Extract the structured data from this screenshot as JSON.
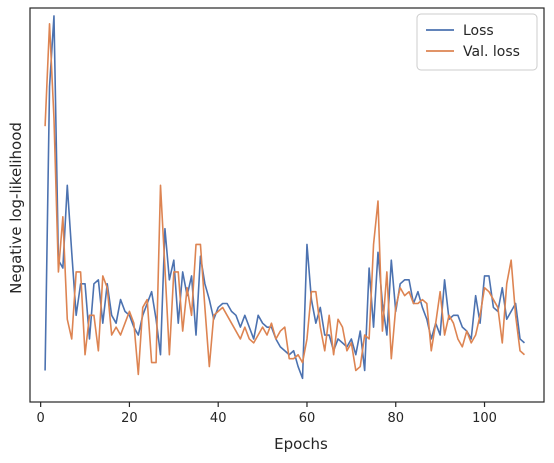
{
  "chart_data": {
    "type": "line",
    "title": "",
    "xlabel": "Epochs",
    "ylabel": "Negative log-likelihood",
    "xlim": [
      -2.4,
      113.4
    ],
    "ylim": [
      0.0,
      1.0
    ],
    "y_tick_labels_shown": false,
    "x_ticks": [
      0,
      20,
      40,
      60,
      80,
      100
    ],
    "grid": false,
    "legend": {
      "placement": "top-right",
      "entries": [
        "Loss",
        "Val. loss"
      ]
    },
    "x": [
      1,
      2,
      3,
      4,
      5,
      6,
      7,
      8,
      9,
      10,
      11,
      12,
      13,
      14,
      15,
      16,
      17,
      18,
      19,
      20,
      21,
      22,
      23,
      24,
      25,
      26,
      27,
      28,
      29,
      30,
      31,
      32,
      33,
      34,
      35,
      36,
      37,
      38,
      39,
      40,
      41,
      42,
      43,
      44,
      45,
      46,
      47,
      48,
      49,
      50,
      51,
      52,
      53,
      54,
      55,
      56,
      57,
      58,
      59,
      60,
      61,
      62,
      63,
      64,
      65,
      66,
      67,
      68,
      69,
      70,
      71,
      72,
      73,
      74,
      75,
      76,
      77,
      78,
      79,
      80,
      81,
      82,
      83,
      84,
      85,
      86,
      87,
      88,
      89,
      90,
      91,
      92,
      93,
      94,
      95,
      96,
      97,
      98,
      99,
      100,
      101,
      102,
      103,
      104,
      105,
      106,
      107,
      108,
      109
    ],
    "series": [
      {
        "name": "Loss",
        "color": "#4c72b0",
        "values": [
          0.08,
          0.8,
          0.98,
          0.36,
          0.34,
          0.55,
          0.38,
          0.22,
          0.3,
          0.3,
          0.16,
          0.3,
          0.31,
          0.2,
          0.3,
          0.22,
          0.2,
          0.26,
          0.23,
          0.22,
          0.19,
          0.17,
          0.22,
          0.25,
          0.28,
          0.21,
          0.12,
          0.44,
          0.31,
          0.36,
          0.2,
          0.33,
          0.27,
          0.32,
          0.17,
          0.37,
          0.3,
          0.26,
          0.21,
          0.24,
          0.25,
          0.25,
          0.23,
          0.22,
          0.19,
          0.22,
          0.19,
          0.16,
          0.22,
          0.2,
          0.19,
          0.19,
          0.16,
          0.14,
          0.13,
          0.12,
          0.13,
          0.09,
          0.06,
          0.4,
          0.26,
          0.2,
          0.24,
          0.17,
          0.17,
          0.13,
          0.16,
          0.15,
          0.14,
          0.16,
          0.12,
          0.18,
          0.08,
          0.34,
          0.19,
          0.38,
          0.25,
          0.17,
          0.36,
          0.23,
          0.3,
          0.31,
          0.31,
          0.25,
          0.28,
          0.24,
          0.21,
          0.16,
          0.2,
          0.17,
          0.31,
          0.21,
          0.22,
          0.22,
          0.19,
          0.18,
          0.16,
          0.27,
          0.2,
          0.32,
          0.32,
          0.24,
          0.23,
          0.29,
          0.21,
          0.23,
          0.25,
          0.16,
          0.15
        ]
      },
      {
        "name": "Val. loss",
        "color": "#dd8452",
        "values": [
          0.7,
          0.96,
          0.72,
          0.33,
          0.47,
          0.21,
          0.16,
          0.33,
          0.33,
          0.12,
          0.22,
          0.22,
          0.13,
          0.32,
          0.29,
          0.17,
          0.19,
          0.17,
          0.2,
          0.23,
          0.2,
          0.07,
          0.24,
          0.26,
          0.1,
          0.1,
          0.55,
          0.34,
          0.12,
          0.33,
          0.33,
          0.18,
          0.29,
          0.22,
          0.4,
          0.4,
          0.24,
          0.09,
          0.22,
          0.23,
          0.24,
          0.22,
          0.2,
          0.18,
          0.16,
          0.19,
          0.16,
          0.15,
          0.17,
          0.19,
          0.17,
          0.2,
          0.16,
          0.18,
          0.19,
          0.11,
          0.11,
          0.12,
          0.1,
          0.16,
          0.28,
          0.28,
          0.19,
          0.13,
          0.22,
          0.12,
          0.21,
          0.19,
          0.13,
          0.15,
          0.08,
          0.09,
          0.17,
          0.16,
          0.4,
          0.51,
          0.18,
          0.33,
          0.11,
          0.24,
          0.29,
          0.27,
          0.28,
          0.25,
          0.25,
          0.26,
          0.25,
          0.13,
          0.2,
          0.28,
          0.17,
          0.22,
          0.2,
          0.16,
          0.14,
          0.18,
          0.15,
          0.17,
          0.22,
          0.29,
          0.28,
          0.26,
          0.24,
          0.15,
          0.3,
          0.36,
          0.22,
          0.13,
          0.12
        ]
      }
    ]
  }
}
